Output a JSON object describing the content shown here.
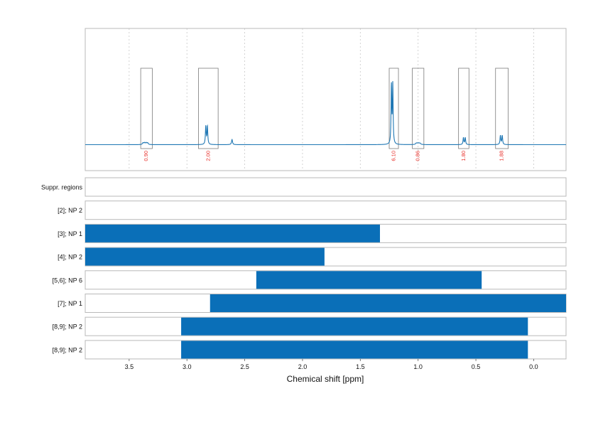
{
  "chart_data": {
    "type": "line",
    "xlabel": "Chemical shift [ppm]",
    "xlim": [
      3.88,
      -0.28
    ],
    "x_ticks": [
      {
        "value": 3.5,
        "label": "3.5"
      },
      {
        "value": 3.0,
        "label": "3.0"
      },
      {
        "value": 2.5,
        "label": "2.5"
      },
      {
        "value": 2.0,
        "label": "2.0"
      },
      {
        "value": 1.5,
        "label": "1.5"
      },
      {
        "value": 1.0,
        "label": "1.0"
      },
      {
        "value": 0.5,
        "label": "0.5"
      },
      {
        "value": 0.0,
        "label": "0.0"
      }
    ],
    "grid": true,
    "spectrum_peaks": [
      {
        "ppm": 3.36,
        "height": 0.05,
        "width": 0.006,
        "multiplet": [
          -0.02,
          -0.007,
          0.007,
          0.02
        ]
      },
      {
        "ppm": 2.83,
        "height": 0.26,
        "width": 0.004,
        "multiplet": [
          -0.007,
          0.007
        ]
      },
      {
        "ppm": 2.61,
        "height": 0.06,
        "width": 0.005,
        "multiplet": [
          0
        ]
      },
      {
        "ppm": 1.225,
        "height": 0.85,
        "width": 0.0035,
        "multiplet": [
          -0.006,
          0.006
        ]
      },
      {
        "ppm": 1.0,
        "height": 0.03,
        "width": 0.008,
        "multiplet": [
          -0.015,
          0,
          0.015
        ]
      },
      {
        "ppm": 0.6,
        "height": 0.1,
        "width": 0.004,
        "multiplet": [
          -0.008,
          0.008
        ]
      },
      {
        "ppm": 0.28,
        "height": 0.13,
        "width": 0.004,
        "multiplet": [
          -0.008,
          0.008
        ]
      }
    ],
    "integration_regions": [
      {
        "from": 3.4,
        "to": 3.3,
        "integral": "0.90"
      },
      {
        "from": 2.9,
        "to": 2.73,
        "integral": "2.00"
      },
      {
        "from": 1.25,
        "to": 1.17,
        "integral": "6.10"
      },
      {
        "from": 1.05,
        "to": 0.95,
        "integral": "0.86"
      },
      {
        "from": 0.65,
        "to": 0.56,
        "integral": "1.80"
      },
      {
        "from": 0.33,
        "to": 0.22,
        "integral": "1.88"
      }
    ],
    "fit_rows": [
      {
        "label": "Suppr. regions",
        "bar": null
      },
      {
        "label": "[2]; NP 2",
        "bar": null
      },
      {
        "label": "[3]; NP 1",
        "bar": [
          3.88,
          1.33
        ]
      },
      {
        "label": "[4]; NP 2",
        "bar": [
          3.88,
          1.81
        ]
      },
      {
        "label": "[5,6]; NP 6",
        "bar": [
          2.4,
          0.45
        ]
      },
      {
        "label": "[7]; NP 1",
        "bar": [
          2.8,
          -0.28
        ]
      },
      {
        "label": "[8,9]; NP 2",
        "bar": [
          3.05,
          0.05
        ]
      },
      {
        "label": "[8,9]; NP 2",
        "bar": [
          3.05,
          0.05
        ]
      }
    ]
  },
  "colors": {
    "spectrum": "#1f77b4",
    "bar": "#0a6fb8",
    "integral_text": "#e8302a",
    "frame": "#b9b9b9",
    "grid": "#c8c8c8"
  }
}
